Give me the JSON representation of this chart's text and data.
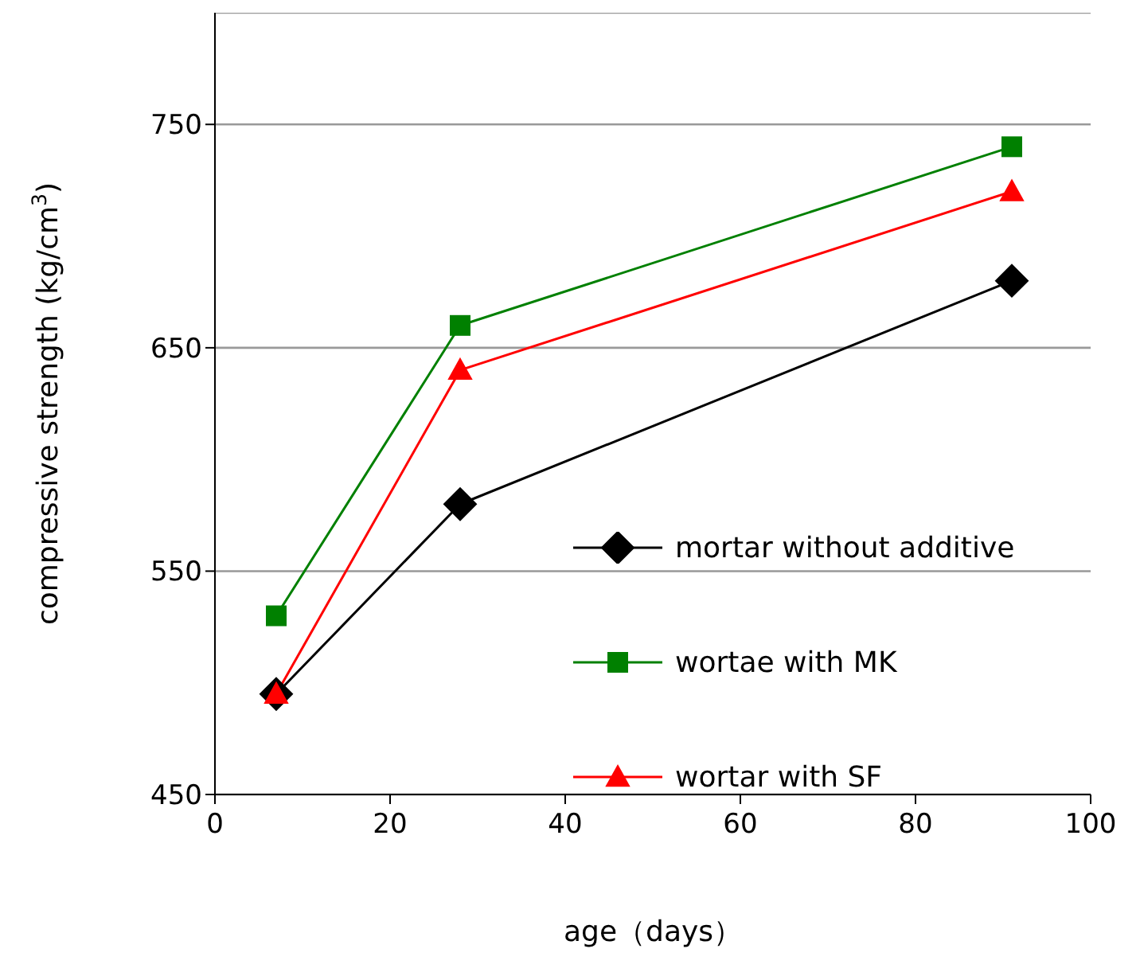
{
  "chart_data": {
    "type": "line",
    "xlabel": "age（days）",
    "ylabel": "compressive strength (kg/cm$^{3}$)",
    "x": [
      7,
      28,
      91
    ],
    "series": [
      {
        "name": "mortar without additive",
        "color": "#000000",
        "marker": "diamond",
        "values": [
          495,
          580,
          680
        ]
      },
      {
        "name": "wortae with MK",
        "color": "#008000",
        "marker": "square",
        "values": [
          530,
          660,
          740
        ]
      },
      {
        "name": "wortar with SF",
        "color": "#ff0000",
        "marker": "triangle",
        "values": [
          495,
          640,
          720
        ]
      }
    ],
    "xlim": [
      0,
      100
    ],
    "xticks": [
      0,
      20,
      40,
      60,
      80,
      100
    ],
    "ylim": [
      450,
      800
    ],
    "yticks": [
      450,
      550,
      650,
      750
    ],
    "grid": "y",
    "legend": "right",
    "line_style": "solid"
  }
}
